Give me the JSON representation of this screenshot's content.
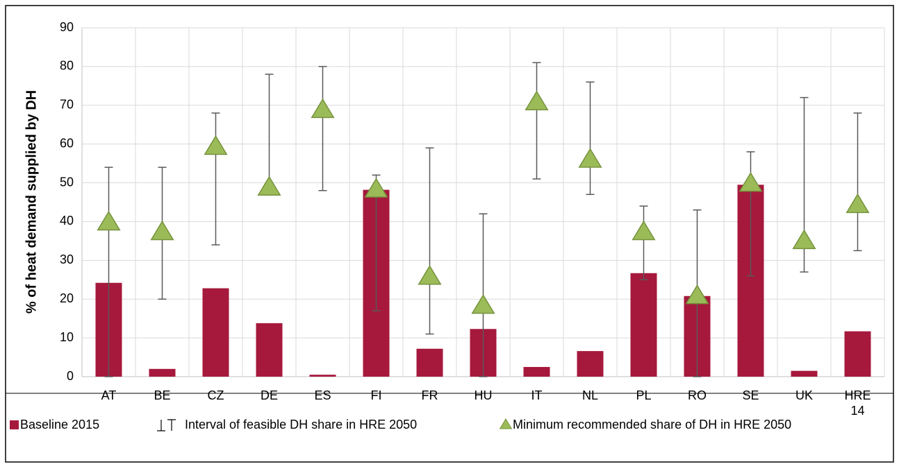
{
  "chart_data": {
    "type": "bar",
    "ylabel": "% of heat demand supplied by DH",
    "categories": [
      "AT",
      "BE",
      "CZ",
      "DE",
      "ES",
      "FI",
      "FR",
      "HU",
      "IT",
      "NL",
      "PL",
      "RO",
      "SE",
      "UK",
      "HRE 14"
    ],
    "series": [
      {
        "name": "Baseline 2015",
        "color": "#a6193c",
        "values": [
          24.2,
          2,
          22.8,
          13.8,
          0.5,
          48.2,
          7.2,
          12.3,
          2.5,
          6.6,
          26.7,
          20.8,
          49.5,
          1.5,
          11.7
        ]
      },
      {
        "name": "Interval of feasible DH share in HRE 2050",
        "color": "#595959",
        "low": [
          0,
          20,
          34,
          49,
          48,
          17,
          11,
          0,
          51,
          47,
          25,
          0,
          26,
          27,
          32.5
        ],
        "high": [
          54,
          54,
          68,
          78,
          80,
          52,
          59,
          42,
          81,
          76,
          44,
          43,
          58,
          72,
          68
        ]
      },
      {
        "name": "Minimum recommended share of DH in HRE 2050",
        "color": "#9bbb59",
        "values": [
          39.5,
          37,
          59,
          48.5,
          68.5,
          48,
          25.5,
          18,
          70.5,
          55.7,
          37,
          20.5,
          49.5,
          34.7,
          44
        ]
      }
    ],
    "ylim": [
      0,
      90
    ],
    "yticks": [
      0,
      10,
      20,
      30,
      40,
      50,
      60,
      70,
      80,
      90
    ],
    "grid": true
  }
}
